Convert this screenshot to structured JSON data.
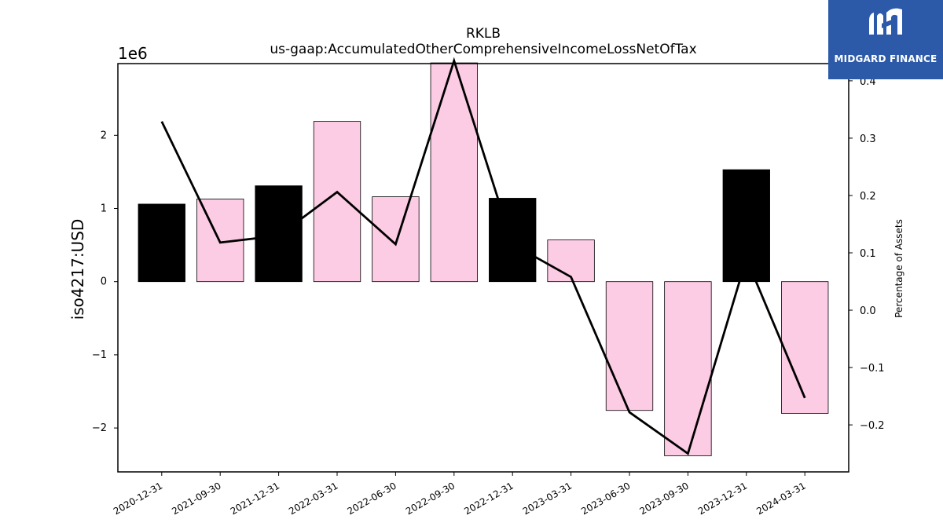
{
  "chart_data": {
    "type": "bar",
    "title": "RKLB",
    "subtitle": "us-gaap:AccumulatedOtherComprehensiveIncomeLossNetOfTax",
    "ylabel": "iso4217:USD",
    "y_offset_label": "1e6",
    "y2label": "Percentage of Assets",
    "categories": [
      "2020-12-31",
      "2021-09-30",
      "2021-12-31",
      "2022-03-31",
      "2022-06-30",
      "2022-09-30",
      "2022-12-31",
      "2023-03-31",
      "2023-06-30",
      "2023-09-30",
      "2023-12-31",
      "2024-03-31"
    ],
    "series": [
      {
        "values": [
          1.06,
          1.13,
          1.31,
          2.19,
          1.16,
          2.99,
          1.14,
          0.57,
          -1.76,
          -2.38,
          1.53,
          -1.8
        ],
        "bar_colors": [
          "#000000",
          "#fccbe4",
          "#000000",
          "#fccbe4",
          "#fccbe4",
          "#fccbe4",
          "#000000",
          "#fccbe4",
          "#fccbe4",
          "#fccbe4",
          "#000000",
          "#fccbe4"
        ]
      },
      {
        "axis": "right",
        "line_color": "#000000",
        "values": [
          0.329,
          0.118,
          0.13,
          0.206,
          0.115,
          0.435,
          0.115,
          0.058,
          -0.178,
          -0.25,
          0.09,
          -0.153
        ]
      }
    ],
    "ylim": [
      -2.6,
      2.98
    ],
    "yticks": [
      -2,
      -1,
      0,
      1,
      2
    ],
    "y2lim": [
      -0.282,
      0.43
    ],
    "y2ticks": [
      -0.2,
      -0.1,
      0.0,
      0.1,
      0.2,
      0.3,
      0.4
    ],
    "grid": false
  },
  "watermark": {
    "text": "MIDGARD FINANCE",
    "bg_color": "#2c5aa8"
  }
}
